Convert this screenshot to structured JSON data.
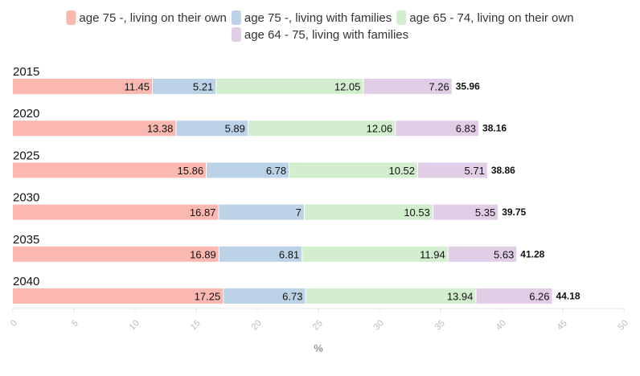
{
  "chart_data": {
    "type": "bar",
    "orientation": "horizontal",
    "stacked": true,
    "categories": [
      "2015",
      "2020",
      "2025",
      "2030",
      "2035",
      "2040"
    ],
    "series": [
      {
        "name": "age 75 -, living on their own",
        "color": "#fbb8b1",
        "values": [
          11.45,
          13.38,
          15.86,
          16.87,
          16.89,
          17.25
        ]
      },
      {
        "name": "age 75 -, living with families",
        "color": "#bcd2e6",
        "values": [
          5.21,
          5.89,
          6.78,
          7,
          6.81,
          6.73
        ]
      },
      {
        "name": "age 65 - 74, living on their own",
        "color": "#d3edcf",
        "values": [
          12.05,
          12.06,
          10.52,
          10.53,
          11.94,
          13.94
        ]
      },
      {
        "name": "age 64 - 75, living with families",
        "color": "#e2cde6",
        "values": [
          7.26,
          6.83,
          5.71,
          5.35,
          5.63,
          6.26
        ]
      }
    ],
    "totals": [
      "35.96",
      "38.16",
      "38.86",
      "39.75",
      "41.28",
      "44.18"
    ],
    "xlabel": "%",
    "xlim": [
      0,
      50
    ],
    "xticks": [
      "0",
      "5",
      "10",
      "15",
      "20",
      "25",
      "30",
      "35",
      "40",
      "45",
      "50"
    ],
    "legend_position": "top",
    "grid": false
  }
}
